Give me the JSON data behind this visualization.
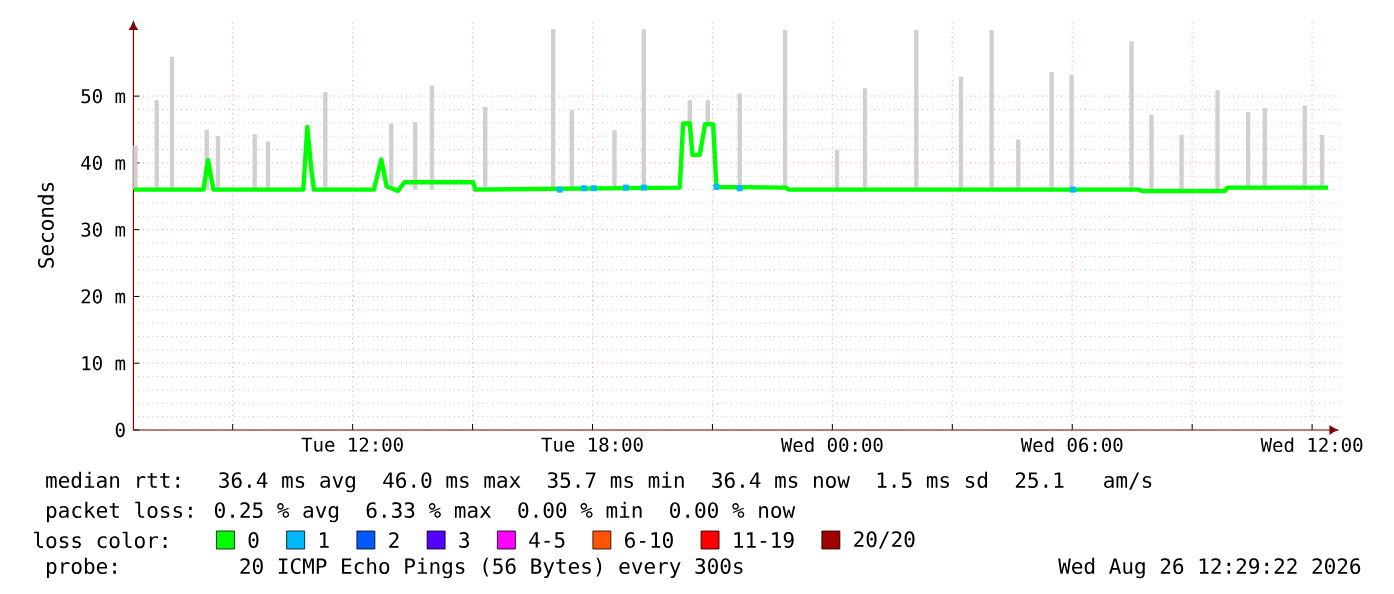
{
  "chart_data": {
    "type": "line",
    "ylabel": "Seconds",
    "xlim": [
      "2026-08-25T06:31",
      "2026-08-26T12:41"
    ],
    "xticks": [
      {
        "value": "2026-08-25T09:00",
        "label": null
      },
      {
        "value": "2026-08-25T12:00",
        "label": "Tue 12:00"
      },
      {
        "value": "2026-08-25T15:00",
        "label": null
      },
      {
        "value": "2026-08-25T18:00",
        "label": "Tue 18:00"
      },
      {
        "value": "2026-08-25T21:00",
        "label": null
      },
      {
        "value": "2026-08-26T00:00",
        "label": "Wed 00:00"
      },
      {
        "value": "2026-08-26T03:00",
        "label": null
      },
      {
        "value": "2026-08-26T06:00",
        "label": "Wed 06:00"
      },
      {
        "value": "2026-08-26T09:00",
        "label": null
      },
      {
        "value": "2026-08-26T12:00",
        "label": "Wed 12:00"
      }
    ],
    "ylim": [
      0,
      61.4
    ],
    "yticks": [
      0,
      {
        "value": 10,
        "label": "10 m"
      },
      {
        "value": 20,
        "label": "20 m"
      },
      {
        "value": 30,
        "label": "30 m"
      },
      {
        "value": 40,
        "label": "40 m"
      },
      {
        "value": 50,
        "label": "50 m"
      }
    ],
    "grid": true,
    "legend": "bottom",
    "legend_title": "loss color:",
    "series": [
      {
        "type": "bar",
        "color": "#d0d0d0",
        "x": [
          "2026-08-25T06:34",
          "2026-08-25T07:06",
          "2026-08-25T07:29",
          "2026-08-25T08:21",
          "2026-08-25T08:38",
          "2026-08-25T09:33",
          "2026-08-25T09:53",
          "2026-08-25T11:19",
          "2026-08-25T12:58",
          "2026-08-25T13:34",
          "2026-08-25T13:59",
          "2026-08-25T15:19",
          "2026-08-25T17:01",
          "2026-08-25T17:29",
          "2026-08-25T18:33",
          "2026-08-25T19:17",
          "2026-08-25T20:26",
          "2026-08-25T20:53",
          "2026-08-25T21:41",
          "2026-08-25T22:49",
          "2026-08-26T00:07",
          "2026-08-26T00:49",
          "2026-08-26T02:06",
          "2026-08-26T03:13",
          "2026-08-26T03:59",
          "2026-08-26T04:39",
          "2026-08-26T05:29",
          "2026-08-26T05:59",
          "2026-08-26T07:29",
          "2026-08-26T07:59",
          "2026-08-26T08:44",
          "2026-08-26T09:38",
          "2026-08-26T10:24",
          "2026-08-26T10:49",
          "2026-08-26T11:49",
          "2026-08-26T12:15"
        ],
        "base": [
          36.0,
          36.0,
          36.0,
          36.0,
          36.0,
          36.0,
          36.0,
          36.0,
          36.0,
          36.0,
          36.0,
          36.0,
          36.0,
          36.0,
          36.0,
          36.0,
          45.9,
          45.8,
          36.0,
          36.0,
          36.0,
          36.0,
          36.0,
          36.0,
          36.0,
          36.0,
          36.0,
          36.0,
          36.0,
          36.0,
          36.0,
          36.0,
          36.0,
          36.0,
          36.0,
          36.0
        ],
        "values": [
          6.6,
          13.4,
          19.9,
          9.0,
          8.0,
          8.3,
          7.2,
          14.6,
          9.9,
          10.1,
          15.6,
          12.4,
          24.0,
          11.9,
          8.9,
          24.0,
          3.5,
          3.6,
          14.4,
          23.9,
          5.9,
          15.2,
          23.9,
          16.9,
          23.9,
          7.5,
          17.6,
          17.2,
          22.2,
          11.2,
          8.2,
          14.9,
          11.6,
          12.2,
          12.6,
          8.2
        ]
      },
      {
        "name": "0",
        "color": "#00ff00",
        "x": [
          "2026-08-25T06:32",
          "2026-08-25T08:16",
          "2026-08-25T08:23",
          "2026-08-25T08:31",
          "2026-08-25T10:46",
          "2026-08-25T10:52",
          "2026-08-25T10:58",
          "2026-08-25T11:02",
          "2026-08-25T12:32",
          "2026-08-25T12:43",
          "2026-08-25T12:51",
          "2026-08-25T13:08",
          "2026-08-25T13:18",
          "2026-08-25T15:01",
          "2026-08-25T15:04",
          "2026-08-25T20:11",
          "2026-08-25T20:16",
          "2026-08-25T20:26",
          "2026-08-25T20:30",
          "2026-08-25T20:41",
          "2026-08-25T20:49",
          "2026-08-25T21:01",
          "2026-08-25T21:06",
          "2026-08-25T22:50",
          "2026-08-25T22:54",
          "2026-08-26T07:41",
          "2026-08-26T07:44",
          "2026-08-26T09:49",
          "2026-08-26T09:53",
          "2026-08-26T12:24"
        ],
        "values": [
          36.0,
          36.0,
          40.4,
          36.0,
          36.0,
          45.4,
          39.0,
          36.0,
          36.0,
          40.5,
          36.5,
          35.8,
          37.1,
          37.1,
          36.0,
          36.3,
          45.9,
          45.9,
          41.2,
          41.2,
          45.8,
          45.8,
          36.4,
          36.3,
          36.0,
          36.0,
          35.8,
          35.8,
          36.3,
          36.3
        ]
      },
      {
        "name": "1",
        "color": "#00b8ff",
        "type": "scatter",
        "marker": "square",
        "x": [
          "2026-08-25T17:11",
          "2026-08-25T17:47",
          "2026-08-25T18:02",
          "2026-08-25T18:50",
          "2026-08-25T19:17",
          "2026-08-25T21:06",
          "2026-08-25T21:41",
          "2026-08-26T06:01"
        ],
        "values": [
          36.0,
          36.2,
          36.2,
          36.3,
          36.3,
          36.4,
          36.2,
          36.0
        ]
      },
      {
        "name": "2",
        "color": "#0059ff"
      },
      {
        "name": "3",
        "color": "#5500ff"
      },
      {
        "name": "4-5",
        "color": "#ff00ff"
      },
      {
        "name": "6-10",
        "color": "#ff5500"
      },
      {
        "name": "11-19",
        "color": "#ff0000"
      },
      {
        "name": "20/20",
        "color": "#a10000"
      }
    ],
    "annotations": [
      "median rtt:  36.4 ms avg  46.0 ms max  35.7 ms min  36.4 ms now  1.5 ms sd  25.1   am/s",
      "packet loss: 0.25 % avg  6.33 % max  0.00 % min  0.00 % now",
      "probe:       20 ICMP Echo Pings (56 Bytes) every 300s",
      "Wed Aug 26 12:29:22 2026"
    ]
  }
}
